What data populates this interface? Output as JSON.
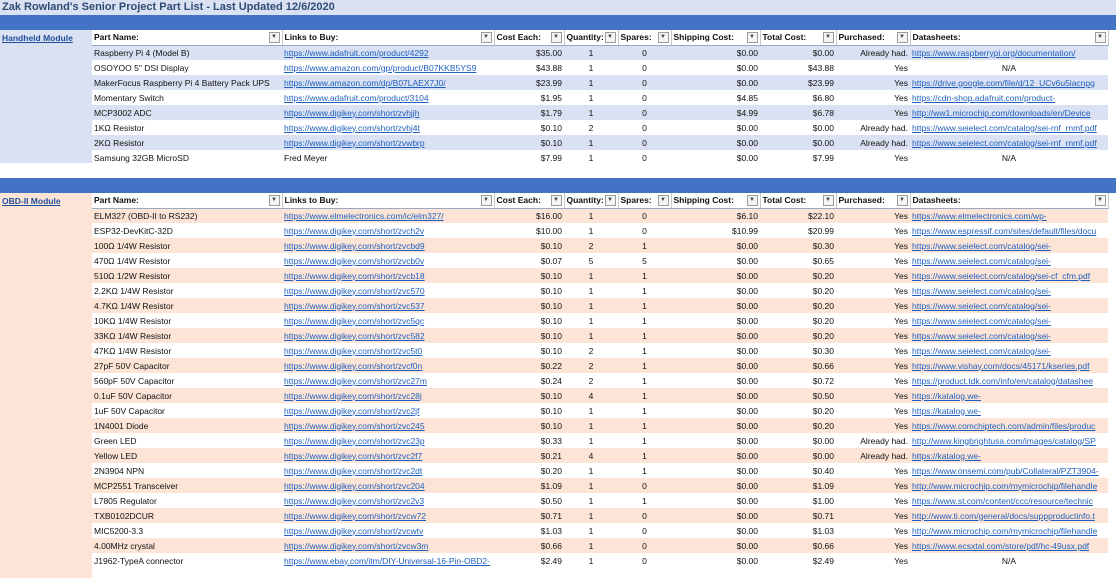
{
  "title": "Zak Rowland's Senior Project Part List - Last Updated 12/6/2020",
  "headers": [
    "Part Name:",
    "Links to Buy:",
    "Cost Each:",
    "Quantity:",
    "Spares:",
    "Shipping Cost:",
    "Total Cost:",
    "Purchased:",
    "Datasheets:"
  ],
  "colors": {
    "band": "#4472c4",
    "handheld_row": "#d9e1f2",
    "obd_row": "#fce4d6",
    "link": "#1f5fbf"
  },
  "handheld": {
    "label": "Handheld Module",
    "rows": [
      [
        "Raspberry Pi 4 (Model B)",
        "https://www.adafruit.com/product/4292",
        "$35.00",
        "1",
        "0",
        "$0.00",
        "$0.00",
        "Already had.",
        "https://www.raspberrypi.org/documentation/"
      ],
      [
        "OSOYOO 5\" DSI Display",
        "https://www.amazon.com/gp/product/B07KKB5YS9",
        "$43.88",
        "1",
        "0",
        "$0.00",
        "$43.88",
        "Yes",
        "N/A"
      ],
      [
        "MakerFocus Raspberry Pi 4 Battery Pack UPS",
        "https://www.amazon.com/dp/B07LAEX7J0/",
        "$23.99",
        "1",
        "0",
        "$0.00",
        "$23.99",
        "Yes",
        "https://drive.google.com/file/d/12_UCv6u5iacnpg"
      ],
      [
        "Momentary Switch",
        "https://www.adafruit.com/product/3104",
        "$1.95",
        "1",
        "0",
        "$4.85",
        "$6.80",
        "Yes",
        "https://cdn-shop.adafruit.com/product-"
      ],
      [
        "MCP3002 ADC",
        "https://www.digikey.com/short/zvhjjh",
        "$1.79",
        "1",
        "0",
        "$4.99",
        "$6.78",
        "Yes",
        "http://ww1.microchip.com/downloads/en/Device"
      ],
      [
        "1KΩ Resistor",
        "https://www.digikey.com/short/zvhj4t",
        "$0.10",
        "2",
        "0",
        "$0.00",
        "$0.00",
        "Already had.",
        "https://www.seielect.com/catalog/sei-rnf_rnmf.pdf"
      ],
      [
        "2KΩ Resistor",
        "https://www.digikey.com/short/zvwbrp",
        "$0.10",
        "1",
        "0",
        "$0.00",
        "$0.00",
        "Already had.",
        "https://www.seielect.com/catalog/sei-rnf_rnmf.pdf"
      ],
      [
        "Samsung 32GB MicroSD",
        "Fred Meyer",
        "$7.99",
        "1",
        "0",
        "$0.00",
        "$7.99",
        "Yes",
        "N/A"
      ]
    ]
  },
  "obd": {
    "label": "OBD-II Module",
    "rows": [
      [
        "ELM327 (OBD-II to RS232)",
        "https://www.elmelectronics.com/ic/elm327/",
        "$16.00",
        "1",
        "0",
        "$6.10",
        "$22.10",
        "Yes",
        "https://www.elmelectronics.com/wp-"
      ],
      [
        "ESP32-DevKitC-32D",
        "https://www.digikey.com/short/zvch2v",
        "$10.00",
        "1",
        "0",
        "$10.99",
        "$20.99",
        "Yes",
        "https://www.espressif.com/sites/default/files/docu"
      ],
      [
        "100Ω 1/4W Resistor",
        "https://www.digikey.com/short/zvcbd9",
        "$0.10",
        "2",
        "1",
        "$0.00",
        "$0.30",
        "Yes",
        "https://www.seielect.com/catalog/sei-"
      ],
      [
        "470Ω 1/4W Resistor",
        "https://www.digikey.com/short/zvcb0v",
        "$0.07",
        "5",
        "5",
        "$0.00",
        "$0.65",
        "Yes",
        "https://www.seielect.com/catalog/sei-"
      ],
      [
        "510Ω 1/2W Resistor",
        "https://www.digikey.com/short/zvcb18",
        "$0.10",
        "1",
        "1",
        "$0.00",
        "$0.20",
        "Yes",
        "https://www.seielect.com/catalog/sei-cf_cfm.pdf"
      ],
      [
        "2.2KΩ 1/4W Resistor",
        "https://www.digikey.com/short/zvc570",
        "$0.10",
        "1",
        "1",
        "$0.00",
        "$0.20",
        "Yes",
        "https://www.seielect.com/catalog/sei-"
      ],
      [
        "4.7KΩ 1/4W Resistor",
        "https://www.digikey.com/short/zvc537",
        "$0.10",
        "1",
        "1",
        "$0.00",
        "$0.20",
        "Yes",
        "https://www.seielect.com/catalog/sei-"
      ],
      [
        "10KΩ 1/4W Resistor",
        "https://www.digikey.com/short/zvc5qc",
        "$0.10",
        "1",
        "1",
        "$0.00",
        "$0.20",
        "Yes",
        "https://www.seielect.com/catalog/sei-"
      ],
      [
        "33KΩ 1/4W Resistor",
        "https://www.digikey.com/short/zvc582",
        "$0.10",
        "1",
        "1",
        "$0.00",
        "$0.20",
        "Yes",
        "https://www.seielect.com/catalog/sei-"
      ],
      [
        "47KΩ 1/4W Resistor",
        "https://www.digikey.com/short/zvc5t0",
        "$0.10",
        "2",
        "1",
        "$0.00",
        "$0.30",
        "Yes",
        "https://www.seielect.com/catalog/sei-"
      ],
      [
        "27pF 50V Capacitor",
        "https://www.digikey.com/short/zvcf0n",
        "$0.22",
        "2",
        "1",
        "$0.00",
        "$0.66",
        "Yes",
        "https://www.vishay.com/docs/45171/kseries.pdf"
      ],
      [
        "560pF 50V Capacitor",
        "https://www.digikey.com/short/zvc27m",
        "$0.24",
        "2",
        "1",
        "$0.00",
        "$0.72",
        "Yes",
        "https://product.tdk.com/info/en/catalog/datashee"
      ],
      [
        "0.1uF 50V Capacitor",
        "https://www.digikey.com/short/zvc28j",
        "$0.10",
        "4",
        "1",
        "$0.00",
        "$0.50",
        "Yes",
        "https://katalog.we-"
      ],
      [
        "1uF 50V Capacitor",
        "https://www.digikey.com/short/zvc2jf",
        "$0.10",
        "1",
        "1",
        "$0.00",
        "$0.20",
        "Yes",
        "https://katalog.we-"
      ],
      [
        "1N4001 Diode",
        "https://www.digikey.com/short/zvc245",
        "$0.10",
        "1",
        "1",
        "$0.00",
        "$0.20",
        "Yes",
        "https://www.comchiptech.com/admin/files/produc"
      ],
      [
        "Green LED",
        "https://www.digikey.com/short/zvc23p",
        "$0.33",
        "1",
        "1",
        "$0.00",
        "$0.00",
        "Already had.",
        "http://www.kingbrightusa.com/images/catalog/SP"
      ],
      [
        "Yellow LED",
        "https://www.digikey.com/short/zvc2f7",
        "$0.21",
        "4",
        "1",
        "$0.00",
        "$0.00",
        "Already had.",
        "https://katalog.we-"
      ],
      [
        "2N3904 NPN",
        "https://www.digikey.com/short/zvc2dt",
        "$0.20",
        "1",
        "1",
        "$0.00",
        "$0.40",
        "Yes",
        "https://www.onsemi.com/pub/Collateral/PZT3904-"
      ],
      [
        "MCP2551 Transceiver",
        "https://www.digikey.com/short/zvc204",
        "$1.09",
        "1",
        "0",
        "$0.00",
        "$1.09",
        "Yes",
        "http://www.microchip.com/mymicrochip/filehandle"
      ],
      [
        "L7805 Regulator",
        "https://www.digikey.com/short/zvc2v3",
        "$0.50",
        "1",
        "1",
        "$0.00",
        "$1.00",
        "Yes",
        "https://www.st.com/content/ccc/resource/technic"
      ],
      [
        "TXB0102DCUR",
        "https://www.digikey.com/short/zvcw72",
        "$0.71",
        "1",
        "0",
        "$0.00",
        "$0.71",
        "Yes",
        "http://www.ti.com/general/docs/suppproductinfo.t"
      ],
      [
        "MIC5200-3.3",
        "https://www.digikey.com/short/zvcwtv",
        "$1.03",
        "1",
        "0",
        "$0.00",
        "$1.03",
        "Yes",
        "http://www.microchip.com/mymicrochip/filehandle"
      ],
      [
        "4.00MHz crystal",
        "https://www.digikey.com/short/zvcw3m",
        "$0.66",
        "1",
        "0",
        "$0.00",
        "$0.66",
        "Yes",
        "https://www.ecsxtal.com/store/pdf/hc-49usx.pdf"
      ],
      [
        "J1962-TypeA connector",
        "https://www.ebay.com/itm/DIY-Universal-16-Pin-OBD2-",
        "$2.49",
        "1",
        "0",
        "$0.00",
        "$2.49",
        "Yes",
        "N/A"
      ]
    ]
  }
}
